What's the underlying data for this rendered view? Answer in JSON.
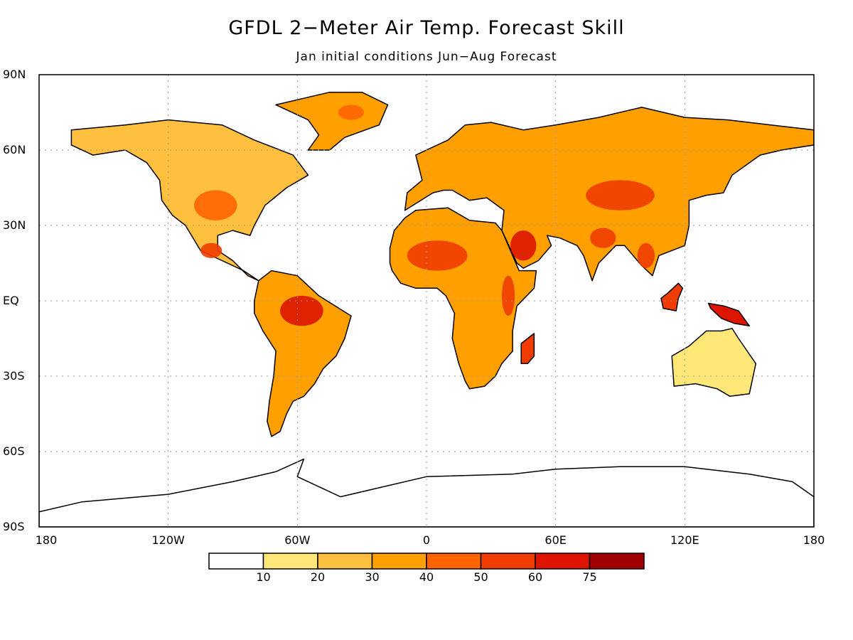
{
  "title": "GFDL 2−Meter Air Temp. Forecast Skill",
  "subtitle": "Jan initial conditions   Jun−Aug Forecast",
  "lat_ticks": [
    {
      "label": "90N",
      "lat": 90
    },
    {
      "label": "60N",
      "lat": 60
    },
    {
      "label": "30N",
      "lat": 30
    },
    {
      "label": "EQ",
      "lat": 0
    },
    {
      "label": "30S",
      "lat": -30
    },
    {
      "label": "60S",
      "lat": -60
    },
    {
      "label": "90S",
      "lat": -90
    }
  ],
  "lon_ticks": [
    {
      "label": "180",
      "lon": -180
    },
    {
      "label": "120W",
      "lon": -120
    },
    {
      "label": "60W",
      "lon": -60
    },
    {
      "label": "0",
      "lon": 0
    },
    {
      "label": "60E",
      "lon": 60
    },
    {
      "label": "120E",
      "lon": 120
    },
    {
      "label": "180",
      "lon": 180
    }
  ],
  "colorbar": {
    "bins": [
      {
        "color": "#ffffff"
      },
      {
        "color": "#ffe878"
      },
      {
        "color": "#ffc040"
      },
      {
        "color": "#ffa000"
      },
      {
        "color": "#ff6400"
      },
      {
        "color": "#f03c00"
      },
      {
        "color": "#dc1400"
      },
      {
        "color": "#a00000"
      }
    ],
    "labels": [
      "10",
      "20",
      "30",
      "40",
      "50",
      "60",
      "75"
    ]
  },
  "skill_regions": [
    {
      "name": "north-america",
      "level": 2,
      "outline": [
        [
          -165,
          68
        ],
        [
          -140,
          70
        ],
        [
          -120,
          72
        ],
        [
          -95,
          70
        ],
        [
          -80,
          64
        ],
        [
          -62,
          58
        ],
        [
          -55,
          50
        ],
        [
          -65,
          45
        ],
        [
          -75,
          38
        ],
        [
          -80,
          30
        ],
        [
          -82,
          26
        ],
        [
          -90,
          28
        ],
        [
          -97,
          26
        ],
        [
          -97,
          20
        ],
        [
          -90,
          16
        ],
        [
          -83,
          10
        ],
        [
          -78,
          8
        ],
        [
          -85,
          12
        ],
        [
          -95,
          16
        ],
        [
          -105,
          20
        ],
        [
          -112,
          30
        ],
        [
          -118,
          34
        ],
        [
          -123,
          40
        ],
        [
          -124,
          48
        ],
        [
          -130,
          55
        ],
        [
          -140,
          60
        ],
        [
          -155,
          58
        ],
        [
          -165,
          62
        ]
      ]
    },
    {
      "name": "greenland",
      "level": 3,
      "outline": [
        [
          -55,
          60
        ],
        [
          -45,
          60
        ],
        [
          -38,
          65
        ],
        [
          -22,
          70
        ],
        [
          -18,
          78
        ],
        [
          -30,
          83
        ],
        [
          -45,
          83
        ],
        [
          -60,
          80
        ],
        [
          -70,
          78
        ],
        [
          -55,
          72
        ],
        [
          -50,
          66
        ]
      ]
    },
    {
      "name": "south-america",
      "level": 3,
      "outline": [
        [
          -78,
          8
        ],
        [
          -72,
          12
        ],
        [
          -60,
          10
        ],
        [
          -50,
          2
        ],
        [
          -35,
          -6
        ],
        [
          -38,
          -15
        ],
        [
          -42,
          -22
        ],
        [
          -48,
          -27
        ],
        [
          -52,
          -33
        ],
        [
          -57,
          -38
        ],
        [
          -62,
          -40
        ],
        [
          -65,
          -45
        ],
        [
          -68,
          -52
        ],
        [
          -72,
          -54
        ],
        [
          -74,
          -48
        ],
        [
          -73,
          -40
        ],
        [
          -71,
          -30
        ],
        [
          -70,
          -20
        ],
        [
          -76,
          -12
        ],
        [
          -80,
          -5
        ],
        [
          -80,
          0
        ]
      ]
    },
    {
      "name": "africa",
      "level": 3,
      "outline": [
        [
          -17,
          21
        ],
        [
          -15,
          28
        ],
        [
          -10,
          33
        ],
        [
          -5,
          36
        ],
        [
          10,
          37
        ],
        [
          20,
          32
        ],
        [
          32,
          31
        ],
        [
          35,
          28
        ],
        [
          43,
          12
        ],
        [
          51,
          12
        ],
        [
          50,
          5
        ],
        [
          42,
          -2
        ],
        [
          40,
          -12
        ],
        [
          40,
          -20
        ],
        [
          35,
          -25
        ],
        [
          32,
          -30
        ],
        [
          27,
          -34
        ],
        [
          20,
          -35
        ],
        [
          18,
          -32
        ],
        [
          15,
          -25
        ],
        [
          12,
          -15
        ],
        [
          13,
          -5
        ],
        [
          9,
          2
        ],
        [
          5,
          5
        ],
        [
          -5,
          5
        ],
        [
          -12,
          7
        ],
        [
          -16,
          12
        ],
        [
          -17,
          15
        ]
      ]
    },
    {
      "name": "eurasia",
      "level": 3,
      "outline": [
        [
          -10,
          36
        ],
        [
          -9,
          43
        ],
        [
          -2,
          48
        ],
        [
          -5,
          58
        ],
        [
          5,
          62
        ],
        [
          10,
          64
        ],
        [
          18,
          70
        ],
        [
          30,
          71
        ],
        [
          45,
          68
        ],
        [
          60,
          70
        ],
        [
          80,
          73
        ],
        [
          100,
          77
        ],
        [
          120,
          73
        ],
        [
          140,
          72
        ],
        [
          160,
          70
        ],
        [
          180,
          68
        ],
        [
          180,
          62
        ],
        [
          165,
          60
        ],
        [
          155,
          58
        ],
        [
          142,
          50
        ],
        [
          138,
          43
        ],
        [
          130,
          42
        ],
        [
          122,
          40
        ],
        [
          122,
          30
        ],
        [
          120,
          22
        ],
        [
          108,
          18
        ],
        [
          105,
          10
        ],
        [
          100,
          14
        ],
        [
          98,
          16
        ],
        [
          92,
          22
        ],
        [
          88,
          22
        ],
        [
          80,
          15
        ],
        [
          77,
          8
        ],
        [
          73,
          18
        ],
        [
          70,
          22
        ],
        [
          62,
          25
        ],
        [
          56,
          26
        ],
        [
          58,
          22
        ],
        [
          52,
          16
        ],
        [
          45,
          13
        ],
        [
          42,
          15
        ],
        [
          35,
          28
        ],
        [
          36,
          36
        ],
        [
          28,
          41
        ],
        [
          20,
          40
        ],
        [
          12,
          44
        ],
        [
          8,
          44
        ],
        [
          3,
          43
        ]
      ]
    },
    {
      "name": "australia",
      "level": 1,
      "outline": [
        [
          114,
          -22
        ],
        [
          122,
          -18
        ],
        [
          130,
          -12
        ],
        [
          137,
          -12
        ],
        [
          142,
          -11
        ],
        [
          145,
          -15
        ],
        [
          153,
          -25
        ],
        [
          150,
          -37
        ],
        [
          141,
          -38
        ],
        [
          135,
          -35
        ],
        [
          125,
          -33
        ],
        [
          115,
          -34
        ]
      ]
    },
    {
      "name": "borneo",
      "level": 5,
      "outline": [
        [
          109,
          1
        ],
        [
          112,
          3
        ],
        [
          117,
          7
        ],
        [
          119,
          5
        ],
        [
          117,
          1
        ],
        [
          116,
          -4
        ],
        [
          110,
          -3
        ]
      ]
    },
    {
      "name": "new-guinea",
      "level": 6,
      "outline": [
        [
          131,
          -1
        ],
        [
          138,
          -2
        ],
        [
          145,
          -4
        ],
        [
          150,
          -10
        ],
        [
          143,
          -9
        ],
        [
          137,
          -7
        ],
        [
          132,
          -3
        ]
      ]
    },
    {
      "name": "madagascar",
      "level": 5,
      "outline": [
        [
          44,
          -25
        ],
        [
          44,
          -17
        ],
        [
          50,
          -13
        ],
        [
          50,
          -22
        ],
        [
          47,
          -25
        ]
      ]
    },
    {
      "name": "antarctica",
      "level": 0,
      "outline": [
        [
          -180,
          -84
        ],
        [
          -160,
          -80
        ],
        [
          -120,
          -77
        ],
        [
          -90,
          -72
        ],
        [
          -70,
          -68
        ],
        [
          -57,
          -63
        ],
        [
          -60,
          -70
        ],
        [
          -40,
          -78
        ],
        [
          0,
          -70
        ],
        [
          40,
          -69
        ],
        [
          60,
          -67
        ],
        [
          90,
          -66
        ],
        [
          120,
          -66
        ],
        [
          150,
          -69
        ],
        [
          170,
          -72
        ],
        [
          180,
          -78
        ],
        [
          180,
          -90
        ],
        [
          -180,
          -90
        ]
      ]
    }
  ],
  "hotspots": [
    {
      "region": "amazon",
      "level": 6,
      "center": [
        -58,
        -4
      ],
      "radius": [
        10,
        6
      ]
    },
    {
      "region": "sahara",
      "level": 5,
      "center": [
        5,
        18
      ],
      "radius": [
        14,
        6
      ]
    },
    {
      "region": "arabia",
      "level": 6,
      "center": [
        45,
        22
      ],
      "radius": [
        6,
        6
      ]
    },
    {
      "region": "central-asia",
      "level": 5,
      "center": [
        90,
        42
      ],
      "radius": [
        16,
        6
      ]
    },
    {
      "region": "east-africa",
      "level": 5,
      "center": [
        38,
        2
      ],
      "radius": [
        3,
        8
      ]
    },
    {
      "region": "mexico",
      "level": 5,
      "center": [
        -100,
        20
      ],
      "radius": [
        5,
        3
      ]
    },
    {
      "region": "central-usa",
      "level": 4,
      "center": [
        -98,
        38
      ],
      "radius": [
        10,
        6
      ]
    },
    {
      "region": "greenland-east",
      "level": 4,
      "center": [
        -35,
        75
      ],
      "radius": [
        6,
        3
      ]
    },
    {
      "region": "india-north",
      "level": 5,
      "center": [
        82,
        25
      ],
      "radius": [
        6,
        4
      ]
    },
    {
      "region": "indochina",
      "level": 5,
      "center": [
        102,
        18
      ],
      "radius": [
        4,
        5
      ]
    }
  ]
}
